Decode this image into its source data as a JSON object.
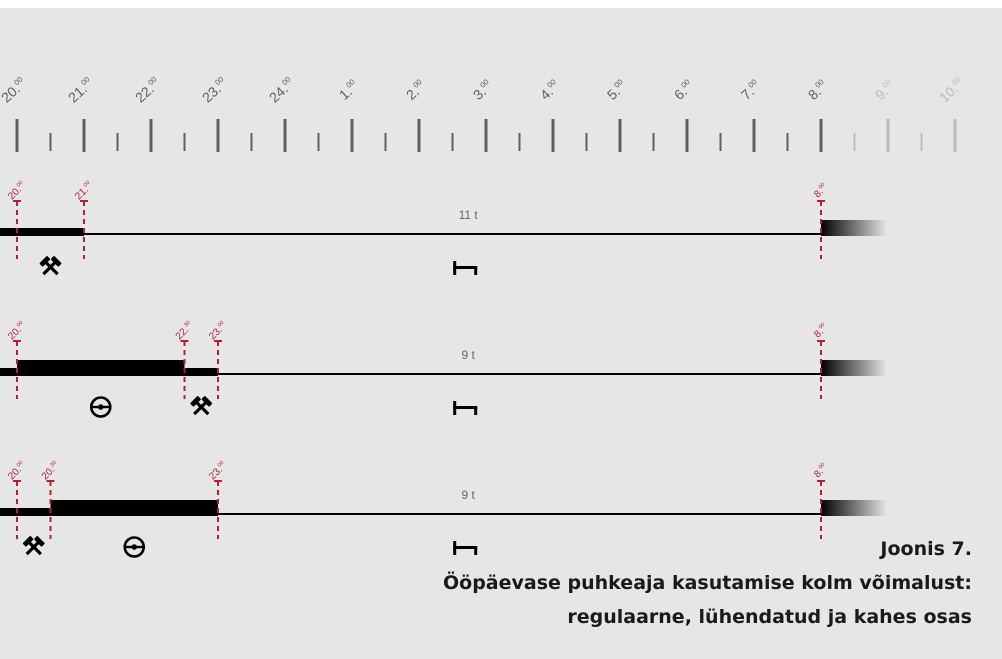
{
  "colors": {
    "background": "#e6e6e6",
    "tick": "#5f5f5f",
    "tick_faded": "#bcbcbc",
    "marker": "#b0203a",
    "bar": "#000000",
    "duration_text": "#666666",
    "caption": "#1a1a1a"
  },
  "timeline": {
    "hours": [
      {
        "h": "20",
        "m": "00",
        "faded": false
      },
      {
        "h": "21",
        "m": "00",
        "faded": false
      },
      {
        "h": "22",
        "m": "00",
        "faded": false
      },
      {
        "h": "23",
        "m": "00",
        "faded": false
      },
      {
        "h": "24",
        "m": "00",
        "faded": false
      },
      {
        "h": "1",
        "m": "00",
        "faded": false
      },
      {
        "h": "2",
        "m": "00",
        "faded": false
      },
      {
        "h": "3",
        "m": "00",
        "faded": false
      },
      {
        "h": "4",
        "m": "00",
        "faded": false
      },
      {
        "h": "5",
        "m": "00",
        "faded": false
      },
      {
        "h": "6",
        "m": "00",
        "faded": false
      },
      {
        "h": "7",
        "m": "00",
        "faded": false
      },
      {
        "h": "8",
        "m": "00",
        "faded": false
      },
      {
        "h": "9",
        "m": "00",
        "faded": true
      },
      {
        "h": "10",
        "m": "00",
        "faded": true
      }
    ]
  },
  "rows": [
    {
      "name": "regular",
      "duration": "11 t",
      "rest_start": 21,
      "markers": [
        {
          "t": 20,
          "h": "20",
          "m": "00"
        },
        {
          "t": 21,
          "h": "21",
          "m": "00"
        },
        {
          "t": 32,
          "h": "8",
          "m": "00"
        }
      ],
      "segments": [
        {
          "from": 20,
          "to": 21,
          "kind": "work"
        }
      ],
      "icons": [
        {
          "type": "hammers-icon",
          "t": 20.5
        },
        {
          "type": "bed-icon",
          "t": 26.6
        }
      ]
    },
    {
      "name": "reduced",
      "duration": "9 t",
      "rest_start": 23,
      "markers": [
        {
          "t": 20,
          "h": "20",
          "m": "00"
        },
        {
          "t": 22.5,
          "h": "22",
          "m": "30"
        },
        {
          "t": 23,
          "h": "23",
          "m": "00"
        },
        {
          "t": 32,
          "h": "8",
          "m": "00"
        }
      ],
      "segments": [
        {
          "from": 20,
          "to": 22.5,
          "kind": "driving"
        },
        {
          "from": 22.5,
          "to": 23,
          "kind": "work"
        }
      ],
      "icons": [
        {
          "type": "steering-wheel-icon",
          "t": 21.25
        },
        {
          "type": "hammers-icon",
          "t": 22.75
        },
        {
          "type": "bed-icon",
          "t": 26.6
        }
      ]
    },
    {
      "name": "split",
      "duration": "9 t",
      "rest_start": 23,
      "markers": [
        {
          "t": 20,
          "h": "20",
          "m": "00"
        },
        {
          "t": 20.5,
          "h": "20",
          "m": "30"
        },
        {
          "t": 23,
          "h": "23",
          "m": "00"
        },
        {
          "t": 32,
          "h": "8",
          "m": "00"
        }
      ],
      "segments": [
        {
          "from": 20,
          "to": 20.5,
          "kind": "work"
        },
        {
          "from": 20.5,
          "to": 23,
          "kind": "driving"
        }
      ],
      "icons": [
        {
          "type": "hammers-icon",
          "t": 20.25
        },
        {
          "type": "steering-wheel-icon",
          "t": 21.75
        },
        {
          "type": "bed-icon",
          "t": 26.6
        }
      ]
    }
  ],
  "caption": {
    "line1": "Joonis 7.",
    "line2": "Ööpäevase puhkeaja kasutamise kolm võimalust:",
    "line3": "regulaarne, lühendatud ja kahes osas"
  }
}
